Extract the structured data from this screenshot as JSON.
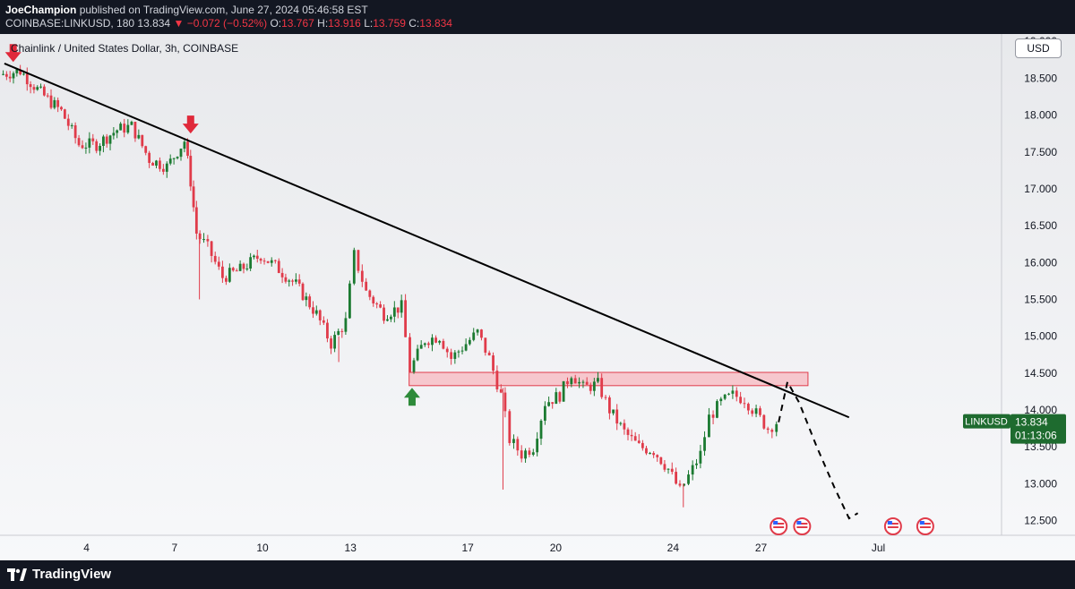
{
  "header": {
    "author": "JoeChampion",
    "published": "published on TradingView.com, June 27, 2024 05:46:58 EST",
    "symbol_line": "COINBASE:LINKUSD, 180",
    "last": "13.834",
    "change": "−0.072 (−0.52%)",
    "o_label": "O:",
    "o_value": "13.767",
    "h_label": "H:",
    "h_value": "13.916",
    "l_label": "L:",
    "l_value": "13.759",
    "c_label": "C:",
    "c_value": "13.834"
  },
  "chart_title": "Chainlink / United States Dollar, 3h, COINBASE",
  "currency_button": "USD",
  "footer": {
    "brand": "TradingView"
  },
  "colors": {
    "up": "#1b7a31",
    "down": "#e03b4a",
    "zone": "#f7b8bf",
    "zone_border": "#e03b4a",
    "trendline": "#000000",
    "arrow_down": "#e0293a",
    "arrow_up": "#2e8b3a",
    "price_tag": "#1e6b2f"
  },
  "chart_data": {
    "type": "candlestick",
    "title": "Chainlink / United States Dollar, 3h, COINBASE",
    "y_ticks": [
      "19.000",
      "18.500",
      "18.000",
      "17.500",
      "17.000",
      "16.500",
      "16.000",
      "15.500",
      "15.000",
      "14.500",
      "14.000",
      "13.500",
      "13.000",
      "12.500"
    ],
    "ylim": [
      12.3,
      19.1
    ],
    "x_ticks": [
      {
        "label": "4",
        "day": 4
      },
      {
        "label": "7",
        "day": 7
      },
      {
        "label": "10",
        "day": 10
      },
      {
        "label": "13",
        "day": 13
      },
      {
        "label": "17",
        "day": 17
      },
      {
        "label": "20",
        "day": 20
      },
      {
        "label": "24",
        "day": 24
      },
      {
        "label": "27",
        "day": 27
      },
      {
        "label": "Jul",
        "day": 31
      }
    ],
    "xlim": [
      1.05,
      35.2
    ],
    "path": [
      [
        1.1,
        18.55
      ],
      [
        1.8,
        18.6
      ],
      [
        2.5,
        18.3
      ],
      [
        3.2,
        18.05
      ],
      [
        3.8,
        17.6
      ],
      [
        4.4,
        17.6
      ],
      [
        5.1,
        17.8
      ],
      [
        5.6,
        17.85
      ],
      [
        6.2,
        17.4
      ],
      [
        6.8,
        17.3
      ],
      [
        7.4,
        17.65
      ],
      [
        7.6,
        17.1
      ],
      [
        7.8,
        16.4
      ],
      [
        8.2,
        16.2
      ],
      [
        8.7,
        15.8
      ],
      [
        9.3,
        15.9
      ],
      [
        10.0,
        16.1
      ],
      [
        10.5,
        15.95
      ],
      [
        11.2,
        15.7
      ],
      [
        11.9,
        15.3
      ],
      [
        12.4,
        14.9
      ],
      [
        12.9,
        15.2
      ],
      [
        13.2,
        16.1
      ],
      [
        13.6,
        15.6
      ],
      [
        14.2,
        15.3
      ],
      [
        14.8,
        15.4
      ],
      [
        15.1,
        14.55
      ],
      [
        15.6,
        14.95
      ],
      [
        16.1,
        15.0
      ],
      [
        16.5,
        14.7
      ],
      [
        17.0,
        14.9
      ],
      [
        17.4,
        15.05
      ],
      [
        17.8,
        14.7
      ],
      [
        18.2,
        14.2
      ],
      [
        18.5,
        13.6
      ],
      [
        18.9,
        13.4
      ],
      [
        19.3,
        13.5
      ],
      [
        19.7,
        14.1
      ],
      [
        20.2,
        14.2
      ],
      [
        20.6,
        14.5
      ],
      [
        21.0,
        14.3
      ],
      [
        21.5,
        14.35
      ],
      [
        21.9,
        14.0
      ],
      [
        22.4,
        13.7
      ],
      [
        22.9,
        13.5
      ],
      [
        23.4,
        13.45
      ],
      [
        23.9,
        13.2
      ],
      [
        24.3,
        12.9
      ],
      [
        24.6,
        13.1
      ],
      [
        25.0,
        13.4
      ],
      [
        25.3,
        13.9
      ],
      [
        25.7,
        14.1
      ],
      [
        26.1,
        14.2
      ],
      [
        26.5,
        14.15
      ],
      [
        26.9,
        13.95
      ],
      [
        27.3,
        13.75
      ],
      [
        27.6,
        13.834
      ]
    ],
    "resistance_zone": {
      "y_low": 14.33,
      "y_high": 14.51,
      "x_start": 15.0,
      "x_end": 28.6
    },
    "trendline": {
      "x1": 1.2,
      "y1": 18.7,
      "x2": 30.0,
      "y2": 13.9
    },
    "projection": [
      [
        27.6,
        13.834
      ],
      [
        27.9,
        14.38
      ],
      [
        28.3,
        14.1
      ],
      [
        28.9,
        13.5
      ],
      [
        29.5,
        12.95
      ],
      [
        30.0,
        12.53
      ],
      [
        30.3,
        12.6
      ]
    ],
    "arrows_down": [
      {
        "x": 1.5,
        "y": 18.72
      },
      {
        "x": 7.55,
        "y": 17.75
      }
    ],
    "arrow_up": {
      "x": 15.1,
      "y": 14.3
    },
    "last_price_label": "LINKUSD",
    "last_price": "13.834",
    "countdown": "01:13:06",
    "event_markers": [
      {
        "day": 27.6
      },
      {
        "day": 28.4
      },
      {
        "day": 31.5
      },
      {
        "day": 32.6
      }
    ]
  }
}
